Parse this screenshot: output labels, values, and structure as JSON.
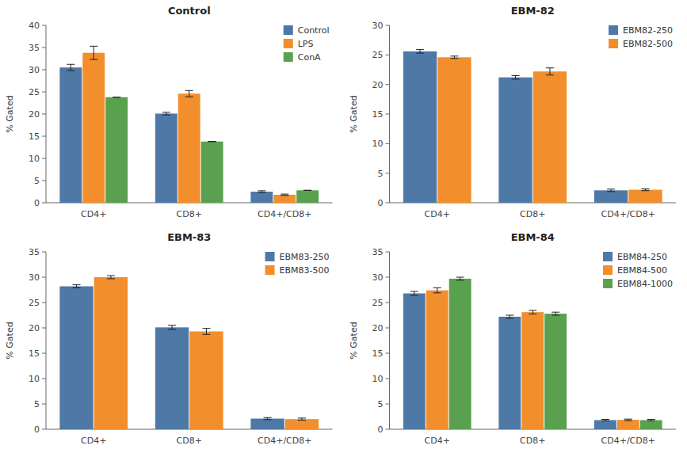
{
  "chart_data": [
    {
      "type": "bar",
      "title": "Control",
      "ylabel": "% Gated",
      "categories": [
        "CD4+",
        "CD8+",
        "CD4+/CD8+"
      ],
      "series": [
        {
          "name": "Control",
          "values": [
            30.5,
            20.1,
            2.5
          ],
          "errors": [
            0.7,
            0.3,
            0.2
          ]
        },
        {
          "name": "LPS",
          "values": [
            33.8,
            24.6,
            1.8
          ],
          "errors": [
            1.5,
            0.7,
            0.15
          ]
        },
        {
          "name": "ConA",
          "values": [
            23.8,
            13.8,
            2.8
          ],
          "errors": [
            0.0,
            0.0,
            0.0
          ]
        }
      ],
      "ylim": [
        0,
        40
      ],
      "yticks": [
        0,
        5,
        10,
        15,
        20,
        25,
        30,
        35,
        40
      ],
      "grid": false,
      "legend": "upper right"
    },
    {
      "type": "bar",
      "title": "EBM-82",
      "ylabel": "% Gated",
      "categories": [
        "CD4+",
        "CD8+",
        "CD4+/CD8+"
      ],
      "series": [
        {
          "name": "EBM82-250",
          "values": [
            25.6,
            21.2,
            2.1
          ],
          "errors": [
            0.3,
            0.3,
            0.2
          ]
        },
        {
          "name": "EBM82-500",
          "values": [
            24.6,
            22.2,
            2.2
          ],
          "errors": [
            0.2,
            0.6,
            0.15
          ]
        }
      ],
      "ylim": [
        0,
        30
      ],
      "yticks": [
        0,
        5,
        10,
        15,
        20,
        25,
        30
      ],
      "grid": false,
      "legend": "upper right"
    },
    {
      "type": "bar",
      "title": "EBM-83",
      "ylabel": "% Gated",
      "categories": [
        "CD4+",
        "CD8+",
        "CD4+/CD8+"
      ],
      "series": [
        {
          "name": "EBM83-250",
          "values": [
            28.2,
            20.1,
            2.1
          ],
          "errors": [
            0.3,
            0.4,
            0.2
          ]
        },
        {
          "name": "EBM83-500",
          "values": [
            30.0,
            19.3,
            2.0
          ],
          "errors": [
            0.3,
            0.6,
            0.2
          ]
        }
      ],
      "ylim": [
        0,
        35
      ],
      "yticks": [
        0,
        5,
        10,
        15,
        20,
        25,
        30,
        35
      ],
      "grid": false,
      "legend": "upper right"
    },
    {
      "type": "bar",
      "title": "EBM-84",
      "ylabel": "% Gated",
      "categories": [
        "CD4+",
        "CD8+",
        "CD4+/CD8+"
      ],
      "series": [
        {
          "name": "EBM84-250",
          "values": [
            26.8,
            22.2,
            1.8
          ],
          "errors": [
            0.4,
            0.3,
            0.15
          ]
        },
        {
          "name": "EBM84-500",
          "values": [
            27.4,
            23.1,
            1.85
          ],
          "errors": [
            0.5,
            0.35,
            0.15
          ]
        },
        {
          "name": "EBM84-1000",
          "values": [
            29.7,
            22.8,
            1.8
          ],
          "errors": [
            0.3,
            0.3,
            0.15
          ]
        }
      ],
      "ylim": [
        0,
        35
      ],
      "yticks": [
        0,
        5,
        10,
        15,
        20,
        25,
        30,
        35
      ],
      "grid": false,
      "legend": "upper right"
    }
  ]
}
